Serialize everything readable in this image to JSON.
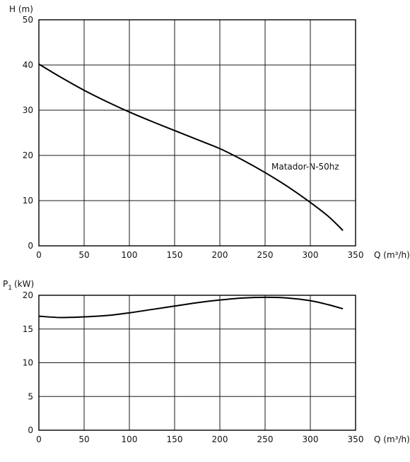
{
  "chart_data": [
    {
      "type": "line",
      "title": "",
      "ylabel": "H (m)",
      "xlabel": "Q (m³/h)",
      "xlim": [
        0,
        350
      ],
      "ylim": [
        0,
        50
      ],
      "x_ticks": [
        0,
        50,
        100,
        150,
        200,
        250,
        300,
        350
      ],
      "y_ticks": [
        0,
        10,
        20,
        30,
        40,
        50
      ],
      "grid": true,
      "series": [
        {
          "name": "Matador-N-50hz",
          "x": [
            0,
            25,
            50,
            75,
            100,
            125,
            150,
            175,
            200,
            225,
            250,
            275,
            300,
            320,
            336
          ],
          "y": [
            40.2,
            37.2,
            34.4,
            31.9,
            29.6,
            27.5,
            25.5,
            23.5,
            21.5,
            19.0,
            16.2,
            13.1,
            9.6,
            6.5,
            3.4
          ]
        }
      ]
    },
    {
      "type": "line",
      "title": "",
      "ylabel": "P1 (kW)",
      "ylabel_main": "P",
      "ylabel_sub": "1",
      "ylabel_unit": "(kW)",
      "xlabel": "Q (m³/h)",
      "xlim": [
        0,
        350
      ],
      "ylim": [
        0,
        20
      ],
      "x_ticks": [
        0,
        50,
        100,
        150,
        200,
        250,
        300,
        350
      ],
      "y_ticks": [
        0,
        5,
        10,
        15,
        20
      ],
      "grid": true,
      "series": [
        {
          "name": "",
          "x": [
            0,
            25,
            50,
            75,
            100,
            125,
            150,
            175,
            200,
            225,
            250,
            275,
            300,
            320,
            336
          ],
          "y": [
            16.9,
            16.7,
            16.8,
            17.0,
            17.4,
            17.9,
            18.4,
            18.9,
            19.3,
            19.6,
            19.7,
            19.6,
            19.2,
            18.6,
            18.0
          ]
        }
      ]
    }
  ]
}
